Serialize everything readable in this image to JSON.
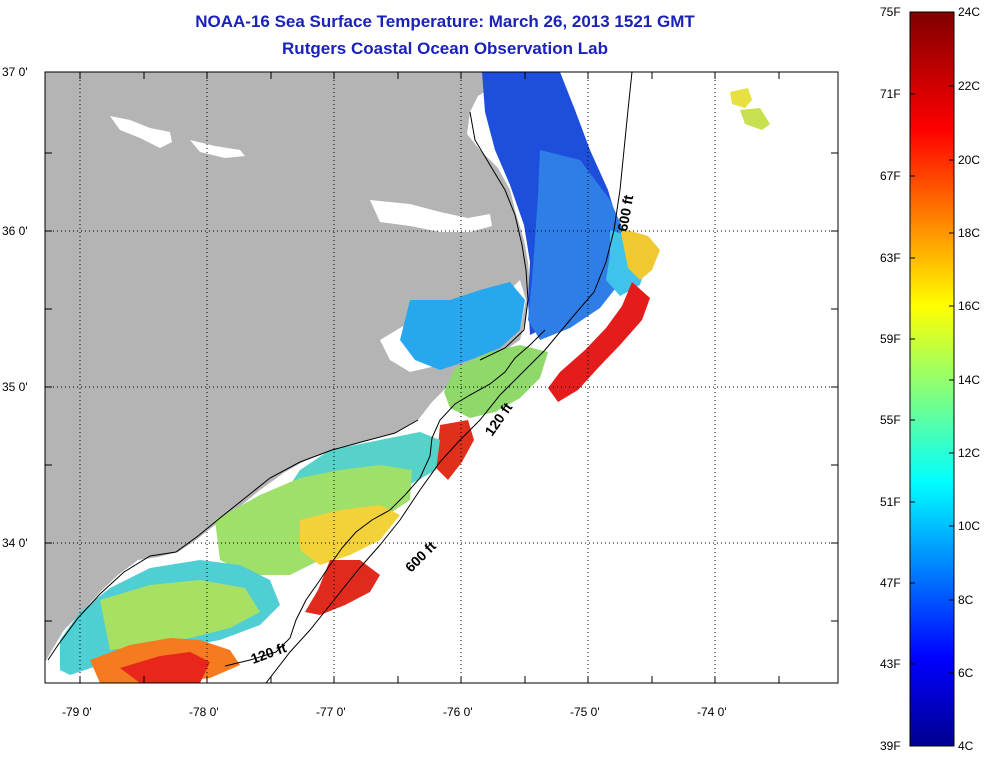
{
  "title": "NOAA-16 Sea Surface Temperature:  March 26, 2013 1521 GMT",
  "subtitle": "Rutgers Coastal Ocean Observation Lab",
  "latitude_labels": [
    "37 0'",
    "36 0'",
    "35 0'",
    "34 0'"
  ],
  "longitude_labels": [
    "-79 0'",
    "-78 0'",
    "-77 0'",
    "-76 0'",
    "-75 0'",
    "-74 0'"
  ],
  "contour_labels": [
    "600 ft",
    "120 ft",
    "600 ft",
    "120 ft"
  ],
  "colorbar": {
    "fahrenheit_labels": [
      "75F",
      "71F",
      "67F",
      "63F",
      "59F",
      "55F",
      "51F",
      "47F",
      "43F",
      "39F"
    ],
    "celsius_labels": [
      "24C",
      "22C",
      "20C",
      "18C",
      "16C",
      "14C",
      "12C",
      "10C",
      "8C",
      "6C",
      "4C"
    ]
  },
  "colors": {
    "title_color": "#1a22b8",
    "land": "#b4b4b4",
    "background": "#ffffff"
  }
}
